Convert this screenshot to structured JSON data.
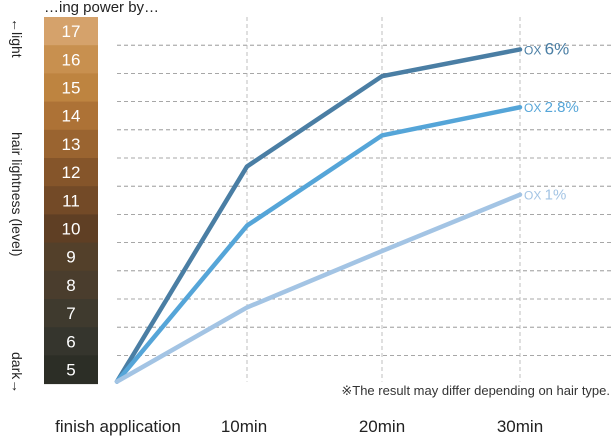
{
  "chart_data": {
    "type": "line",
    "title": "…ing power by…",
    "xlabel": "",
    "ylabel": "hair lightness (level)",
    "y_dark_label": "dark→",
    "y_light_label": "←light",
    "categories": [
      "finish application",
      "10min",
      "20min",
      "30min"
    ],
    "levels": [
      "17",
      "16",
      "15",
      "14",
      "13",
      "12",
      "11",
      "10",
      "9",
      "8",
      "7",
      "6",
      "5"
    ],
    "level_values": [
      17,
      16,
      15,
      14,
      13,
      12,
      11,
      10,
      9,
      8,
      7,
      6,
      5
    ],
    "level_colors": [
      "#d5a26b",
      "#c8904f",
      "#be8440",
      "#ad7236",
      "#9a6430",
      "#85552a",
      "#734a27",
      "#5f3f24",
      "#53402a",
      "#4a3d2d",
      "#3f3a2e",
      "#35352d",
      "#2c2e26"
    ],
    "ylim": [
      5,
      17
    ],
    "grid": true,
    "series": [
      {
        "name_prefix": "OX",
        "name_value": "6%",
        "color": "#4a7ea4",
        "values": [
          5,
          12.2,
          15.4,
          16.35
        ]
      },
      {
        "name_prefix": "OX",
        "name_value": "2.8%",
        "color": "#55a5d8",
        "values": [
          5,
          10.1,
          13.3,
          14.3
        ]
      },
      {
        "name_prefix": "OX",
        "name_value": "1%",
        "color": "#a3c4e4",
        "values": [
          5,
          7.2,
          9.2,
          11.2
        ]
      }
    ],
    "annotation": "※The result may differ depending on hair type."
  }
}
